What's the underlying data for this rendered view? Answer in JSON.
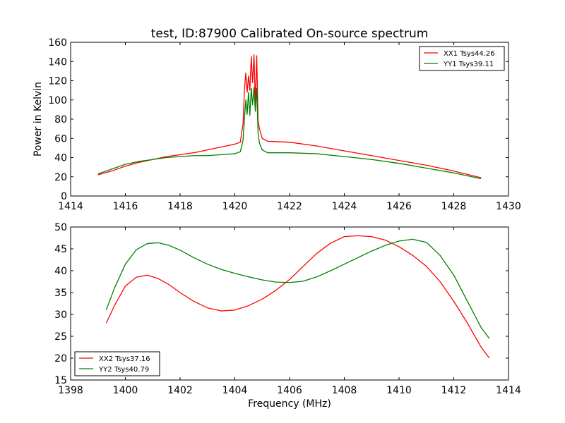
{
  "figure": {
    "title": "test, ID:87900 Calibrated On-source spectrum"
  },
  "chart_data": [
    {
      "type": "line",
      "title": "test, ID:87900 Calibrated On-source spectrum",
      "xlabel": "",
      "ylabel": "Power in Kelvin",
      "xlim": [
        1414,
        1430
      ],
      "ylim": [
        0,
        160
      ],
      "xticks": [
        1414,
        1416,
        1418,
        1420,
        1422,
        1424,
        1426,
        1428,
        1430
      ],
      "yticks": [
        0,
        20,
        40,
        60,
        80,
        100,
        120,
        140,
        160
      ],
      "grid": false,
      "legend_position": "top-right",
      "series": [
        {
          "name": "XX1 Tsys44.26",
          "color": "#ff0000",
          "x": [
            1415.0,
            1415.5,
            1416.0,
            1416.5,
            1417.0,
            1417.5,
            1418.0,
            1418.5,
            1419.0,
            1419.5,
            1420.0,
            1420.2,
            1420.3,
            1420.35,
            1420.4,
            1420.45,
            1420.5,
            1420.55,
            1420.6,
            1420.65,
            1420.7,
            1420.75,
            1420.8,
            1420.85,
            1420.9,
            1421.0,
            1421.2,
            1422.0,
            1423.0,
            1424.0,
            1425.0,
            1426.0,
            1427.0,
            1428.0,
            1429.0
          ],
          "y": [
            22,
            26,
            31,
            35,
            38,
            41,
            43,
            45,
            48,
            51,
            54,
            56,
            75,
            110,
            128,
            108,
            125,
            110,
            145,
            118,
            147,
            96,
            146,
            78,
            70,
            60,
            57,
            56,
            52,
            47,
            42,
            37,
            32,
            26,
            19
          ]
        },
        {
          "name": "YY1 Tsys39.11",
          "color": "#008000",
          "x": [
            1415.0,
            1415.5,
            1416.0,
            1416.5,
            1417.0,
            1417.5,
            1418.0,
            1418.5,
            1419.0,
            1419.5,
            1420.0,
            1420.2,
            1420.3,
            1420.35,
            1420.4,
            1420.45,
            1420.5,
            1420.55,
            1420.6,
            1420.65,
            1420.7,
            1420.75,
            1420.8,
            1420.85,
            1420.9,
            1421.0,
            1421.2,
            1422.0,
            1423.0,
            1424.0,
            1425.0,
            1426.0,
            1427.0,
            1428.0,
            1429.0
          ],
          "y": [
            23,
            28,
            33,
            36,
            38,
            40,
            41,
            42,
            42,
            43,
            44,
            46,
            58,
            80,
            100,
            85,
            108,
            84,
            112,
            95,
            113,
            88,
            112,
            65,
            55,
            48,
            45,
            45,
            44,
            41,
            38,
            34,
            29,
            24,
            18
          ]
        }
      ]
    },
    {
      "type": "line",
      "title": "",
      "xlabel": "Frequency (MHz)",
      "ylabel": "",
      "xlim": [
        1398,
        1414
      ],
      "ylim": [
        15,
        50
      ],
      "xticks": [
        1398,
        1400,
        1402,
        1404,
        1406,
        1408,
        1410,
        1412,
        1414
      ],
      "yticks": [
        15,
        20,
        25,
        30,
        35,
        40,
        45,
        50
      ],
      "grid": false,
      "legend_position": "bottom-left",
      "series": [
        {
          "name": "XX2 Tsys37.16",
          "color": "#ff0000",
          "x": [
            1399.3,
            1399.6,
            1400.0,
            1400.4,
            1400.8,
            1401.2,
            1401.6,
            1402.0,
            1402.5,
            1403.0,
            1403.5,
            1404.0,
            1404.5,
            1405.0,
            1405.5,
            1406.0,
            1406.5,
            1407.0,
            1407.5,
            1408.0,
            1408.5,
            1409.0,
            1409.5,
            1410.0,
            1410.5,
            1411.0,
            1411.5,
            1412.0,
            1412.5,
            1413.0,
            1413.3
          ],
          "y": [
            28,
            32,
            36.5,
            38.5,
            39,
            38.2,
            36.8,
            35,
            33,
            31.5,
            30.8,
            31,
            32,
            33.5,
            35.5,
            38,
            41,
            44,
            46.3,
            47.8,
            48,
            47.8,
            47,
            45.5,
            43.5,
            41,
            37.5,
            33,
            28,
            22.5,
            20
          ]
        },
        {
          "name": "YY2 Tsys40.79",
          "color": "#008000",
          "x": [
            1399.3,
            1399.6,
            1400.0,
            1400.4,
            1400.8,
            1401.2,
            1401.6,
            1402.0,
            1402.5,
            1403.0,
            1403.5,
            1404.0,
            1404.5,
            1405.0,
            1405.5,
            1406.0,
            1406.5,
            1407.0,
            1407.5,
            1408.0,
            1408.5,
            1409.0,
            1409.5,
            1410.0,
            1410.5,
            1411.0,
            1411.5,
            1412.0,
            1412.5,
            1413.0,
            1413.3
          ],
          "y": [
            31,
            36,
            41.5,
            44.8,
            46.2,
            46.4,
            45.8,
            44.7,
            43,
            41.5,
            40.3,
            39.4,
            38.6,
            37.9,
            37.4,
            37.3,
            37.6,
            38.6,
            40,
            41.5,
            43,
            44.5,
            45.8,
            46.8,
            47.2,
            46.5,
            43.5,
            39,
            33,
            27,
            24.5
          ]
        }
      ]
    }
  ]
}
